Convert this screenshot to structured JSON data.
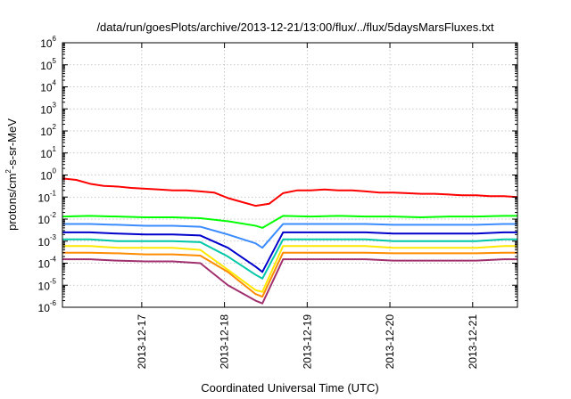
{
  "chart_data": {
    "type": "line",
    "title": "/data/run/goesPlots/archive/2013-12-21/13:00/flux/../flux/5daysMarsFluxes.txt",
    "xlabel": "Coordinated Universal Time (UTC)",
    "ylabel": "protons/cm²-s-sr-MeV",
    "ylabel_parts": [
      "protons/cm",
      "2",
      "-s-sr-MeV"
    ],
    "y_scale": "log",
    "ylim": [
      1e-06,
      1000000.0
    ],
    "xlim": [
      "2013-12-16T01:00",
      "2013-12-21T13:00"
    ],
    "grid": true,
    "legend": "none",
    "x_ticks": [
      {
        "value": "2013-12-17T00:00",
        "label": "2013-12-17"
      },
      {
        "value": "2013-12-18T00:00",
        "label": "2013-12-18"
      },
      {
        "value": "2013-12-19T00:00",
        "label": "2013-12-19"
      },
      {
        "value": "2013-12-20T00:00",
        "label": "2013-12-20"
      },
      {
        "value": "2013-12-21T00:00",
        "label": "2013-12-21"
      }
    ],
    "y_ticks": [
      {
        "value": 1e-06,
        "base": "10",
        "exp": "-6"
      },
      {
        "value": 1e-05,
        "base": "10",
        "exp": "-5"
      },
      {
        "value": 0.0001,
        "base": "10",
        "exp": "-4"
      },
      {
        "value": 0.001,
        "base": "10",
        "exp": "-3"
      },
      {
        "value": 0.01,
        "base": "10",
        "exp": "-2"
      },
      {
        "value": 0.1,
        "base": "10",
        "exp": "-1"
      },
      {
        "value": 1.0,
        "base": "10",
        "exp": "0"
      },
      {
        "value": 10.0,
        "base": "10",
        "exp": "1"
      },
      {
        "value": 100.0,
        "base": "10",
        "exp": "2"
      },
      {
        "value": 1000.0,
        "base": "10",
        "exp": "3"
      },
      {
        "value": 10000.0,
        "base": "10",
        "exp": "4"
      },
      {
        "value": 100000.0,
        "base": "10",
        "exp": "5"
      },
      {
        "value": 1000000.0,
        "base": "10",
        "exp": "6"
      }
    ],
    "series": [
      {
        "color": "#ff0000",
        "x": [
          "2013-12-16T01:00",
          "2013-12-16T05:00",
          "2013-12-16T09:00",
          "2013-12-16T13:00",
          "2013-12-16T17:00",
          "2013-12-16T21:00",
          "2013-12-17T01:00",
          "2013-12-17T05:00",
          "2013-12-17T09:00",
          "2013-12-17T13:00",
          "2013-12-17T17:00",
          "2013-12-17T21:00",
          "2013-12-18T01:00",
          "2013-12-18T05:00",
          "2013-12-18T09:00",
          "2013-12-18T13:00",
          "2013-12-18T17:00",
          "2013-12-18T21:00",
          "2013-12-19T01:00",
          "2013-12-19T05:00",
          "2013-12-19T09:00",
          "2013-12-19T13:00",
          "2013-12-19T17:00",
          "2013-12-19T21:00",
          "2013-12-20T01:00",
          "2013-12-20T05:00",
          "2013-12-20T09:00",
          "2013-12-20T13:00",
          "2013-12-20T17:00",
          "2013-12-20T21:00",
          "2013-12-21T01:00",
          "2013-12-21T05:00",
          "2013-12-21T09:00",
          "2013-12-21T13:00"
        ],
        "values": [
          0.7,
          0.6,
          0.4,
          0.32,
          0.3,
          0.26,
          0.24,
          0.22,
          0.2,
          0.2,
          0.18,
          0.16,
          0.09,
          0.06,
          0.04,
          0.05,
          0.15,
          0.2,
          0.2,
          0.22,
          0.2,
          0.2,
          0.18,
          0.16,
          0.16,
          0.15,
          0.14,
          0.14,
          0.13,
          0.12,
          0.12,
          0.11,
          0.11,
          0.1
        ]
      },
      {
        "color": "#00ff00",
        "x": [
          "2013-12-16T01:00",
          "2013-12-16T09:00",
          "2013-12-16T17:00",
          "2013-12-17T01:00",
          "2013-12-17T09:00",
          "2013-12-17T17:00",
          "2013-12-18T01:00",
          "2013-12-18T09:00",
          "2013-12-18T11:00",
          "2013-12-18T17:00",
          "2013-12-19T01:00",
          "2013-12-19T09:00",
          "2013-12-19T17:00",
          "2013-12-20T01:00",
          "2013-12-20T09:00",
          "2013-12-20T17:00",
          "2013-12-21T01:00",
          "2013-12-21T09:00",
          "2013-12-21T13:00"
        ],
        "values": [
          0.013,
          0.014,
          0.013,
          0.012,
          0.012,
          0.011,
          0.008,
          0.005,
          0.004,
          0.014,
          0.013,
          0.014,
          0.013,
          0.013,
          0.012,
          0.013,
          0.013,
          0.014,
          0.014
        ]
      },
      {
        "color": "#3a8cff",
        "x": [
          "2013-12-16T01:00",
          "2013-12-16T09:00",
          "2013-12-16T17:00",
          "2013-12-17T01:00",
          "2013-12-17T09:00",
          "2013-12-17T17:00",
          "2013-12-18T01:00",
          "2013-12-18T09:00",
          "2013-12-18T11:00",
          "2013-12-18T17:00",
          "2013-12-19T01:00",
          "2013-12-19T09:00",
          "2013-12-19T17:00",
          "2013-12-20T01:00",
          "2013-12-20T09:00",
          "2013-12-20T17:00",
          "2013-12-21T01:00",
          "2013-12-21T09:00",
          "2013-12-21T13:00"
        ],
        "values": [
          0.006,
          0.006,
          0.0055,
          0.005,
          0.005,
          0.0045,
          0.002,
          0.0008,
          0.0005,
          0.006,
          0.006,
          0.006,
          0.006,
          0.0055,
          0.0055,
          0.0055,
          0.0055,
          0.006,
          0.006
        ]
      },
      {
        "color": "#0000cc",
        "x": [
          "2013-12-16T01:00",
          "2013-12-16T09:00",
          "2013-12-16T17:00",
          "2013-12-17T01:00",
          "2013-12-17T09:00",
          "2013-12-17T17:00",
          "2013-12-18T01:00",
          "2013-12-18T09:00",
          "2013-12-18T11:00",
          "2013-12-18T17:00",
          "2013-12-19T01:00",
          "2013-12-19T09:00",
          "2013-12-19T17:00",
          "2013-12-20T01:00",
          "2013-12-20T09:00",
          "2013-12-20T17:00",
          "2013-12-21T01:00",
          "2013-12-21T09:00",
          "2013-12-21T13:00"
        ],
        "values": [
          0.0025,
          0.0025,
          0.0022,
          0.002,
          0.002,
          0.0018,
          0.0005,
          7e-05,
          4e-05,
          0.0025,
          0.0025,
          0.0025,
          0.0025,
          0.0022,
          0.0022,
          0.0022,
          0.0022,
          0.0025,
          0.0025
        ]
      },
      {
        "color": "#00c8a8",
        "x": [
          "2013-12-16T01:00",
          "2013-12-16T09:00",
          "2013-12-16T17:00",
          "2013-12-17T01:00",
          "2013-12-17T09:00",
          "2013-12-17T17:00",
          "2013-12-18T01:00",
          "2013-12-18T09:00",
          "2013-12-18T11:00",
          "2013-12-18T17:00",
          "2013-12-19T01:00",
          "2013-12-19T09:00",
          "2013-12-19T17:00",
          "2013-12-20T01:00",
          "2013-12-20T09:00",
          "2013-12-20T17:00",
          "2013-12-21T01:00",
          "2013-12-21T09:00",
          "2013-12-21T13:00"
        ],
        "values": [
          0.0012,
          0.0012,
          0.001,
          0.001,
          0.001,
          0.0009,
          0.0002,
          3e-05,
          2e-05,
          0.0012,
          0.0012,
          0.0012,
          0.0012,
          0.001,
          0.001,
          0.001,
          0.001,
          0.0012,
          0.0012
        ]
      },
      {
        "color": "#ffe800",
        "x": [
          "2013-12-16T01:00",
          "2013-12-16T09:00",
          "2013-12-16T17:00",
          "2013-12-17T01:00",
          "2013-12-17T09:00",
          "2013-12-17T17:00",
          "2013-12-18T01:00",
          "2013-12-18T09:00",
          "2013-12-18T11:00",
          "2013-12-18T17:00",
          "2013-12-19T01:00",
          "2013-12-19T09:00",
          "2013-12-19T17:00",
          "2013-12-20T01:00",
          "2013-12-20T09:00",
          "2013-12-20T17:00",
          "2013-12-21T01:00",
          "2013-12-21T09:00",
          "2013-12-21T13:00"
        ],
        "values": [
          0.0006,
          0.0006,
          0.0005,
          0.0005,
          0.0005,
          0.0004,
          5e-05,
          6e-06,
          5e-06,
          0.0006,
          0.0006,
          0.0006,
          0.0006,
          0.0005,
          0.0005,
          0.0005,
          0.0005,
          0.0006,
          0.0006
        ]
      },
      {
        "color": "#ff8c00",
        "x": [
          "2013-12-16T01:00",
          "2013-12-16T09:00",
          "2013-12-16T17:00",
          "2013-12-17T01:00",
          "2013-12-17T09:00",
          "2013-12-17T17:00",
          "2013-12-18T01:00",
          "2013-12-18T09:00",
          "2013-12-18T11:00",
          "2013-12-18T17:00",
          "2013-12-19T01:00",
          "2013-12-19T09:00",
          "2013-12-19T17:00",
          "2013-12-20T01:00",
          "2013-12-20T09:00",
          "2013-12-20T17:00",
          "2013-12-21T01:00",
          "2013-12-21T09:00",
          "2013-12-21T13:00"
        ],
        "values": [
          0.0003,
          0.0003,
          0.00028,
          0.00025,
          0.00025,
          0.00022,
          4e-05,
          4e-06,
          3e-06,
          0.0003,
          0.0003,
          0.0003,
          0.0003,
          0.00028,
          0.00028,
          0.00028,
          0.00028,
          0.0003,
          0.0003
        ]
      },
      {
        "color": "#a0306e",
        "x": [
          "2013-12-16T01:00",
          "2013-12-16T09:00",
          "2013-12-16T17:00",
          "2013-12-17T01:00",
          "2013-12-17T09:00",
          "2013-12-17T17:00",
          "2013-12-18T01:00",
          "2013-12-18T09:00",
          "2013-12-18T11:00",
          "2013-12-18T17:00",
          "2013-12-19T01:00",
          "2013-12-19T09:00",
          "2013-12-19T17:00",
          "2013-12-20T01:00",
          "2013-12-20T09:00",
          "2013-12-20T17:00",
          "2013-12-21T01:00",
          "2013-12-21T09:00",
          "2013-12-21T13:00"
        ],
        "values": [
          0.00015,
          0.00015,
          0.00013,
          0.00012,
          0.00012,
          0.0001,
          1e-05,
          2e-06,
          1.5e-06,
          0.00015,
          0.00015,
          0.00015,
          0.00015,
          0.00013,
          0.00013,
          0.00013,
          0.00013,
          0.00015,
          0.00015
        ]
      }
    ]
  }
}
